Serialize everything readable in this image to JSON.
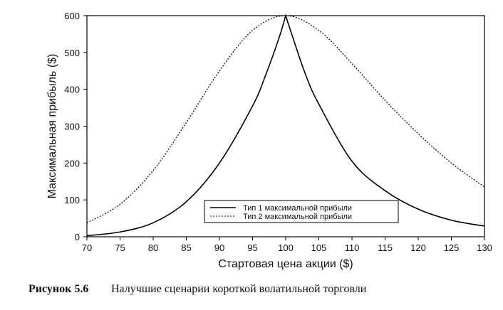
{
  "chart_data": {
    "type": "line",
    "title": "",
    "xlabel": "Стартовая цена акции ($)",
    "ylabel": "Максимальная прибыль ($)",
    "xlim": [
      70,
      130
    ],
    "ylim": [
      0,
      600
    ],
    "xticks": [
      "70",
      "75",
      "80",
      "85",
      "90",
      "95",
      "100",
      "105",
      "110",
      "115",
      "120",
      "125",
      "130"
    ],
    "yticks": [
      "0",
      "100",
      "200",
      "300",
      "400",
      "500",
      "600"
    ],
    "grid": false,
    "legend_position": "bottom-center",
    "series": [
      {
        "name": "Тип 1 максимальной прибыли",
        "style": "solid",
        "color": "#000000",
        "x": [
          70,
          75,
          80,
          85,
          90,
          95,
          97,
          99,
          100,
          101,
          103,
          105,
          110,
          115,
          120,
          125,
          130
        ],
        "y": [
          3,
          13,
          38,
          95,
          200,
          355,
          440,
          540,
          600,
          545,
          440,
          360,
          205,
          125,
          75,
          45,
          29
        ]
      },
      {
        "name": "Тип 2 максимальной прибыли",
        "style": "dotted",
        "color": "#000000",
        "x": [
          70,
          75,
          80,
          85,
          90,
          95,
          100,
          105,
          110,
          115,
          120,
          125,
          130
        ],
        "y": [
          38,
          88,
          180,
          310,
          450,
          560,
          600,
          560,
          470,
          370,
          280,
          200,
          135
        ]
      }
    ]
  },
  "caption": {
    "label": "Рисунок 5.6",
    "text": "Налучшие сценарии короткой волатильной торговли"
  }
}
